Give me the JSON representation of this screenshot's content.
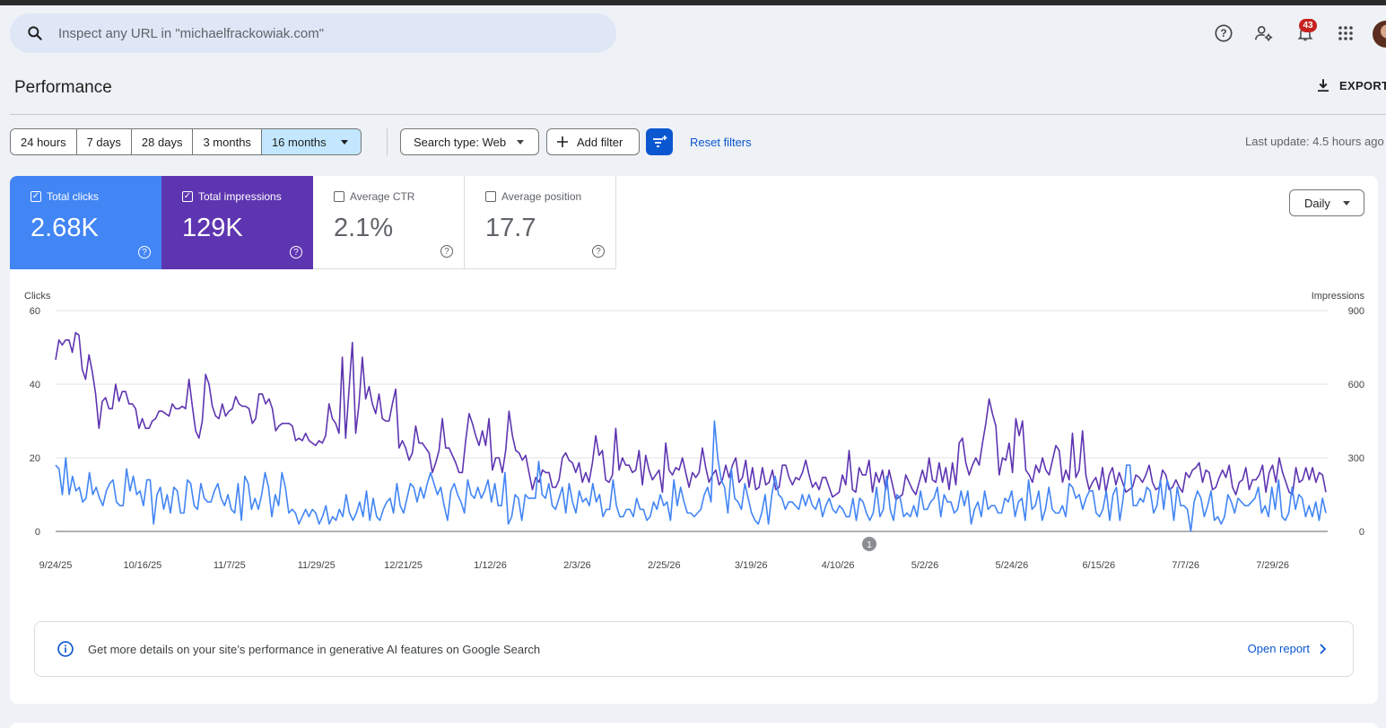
{
  "search": {
    "placeholder": "Inspect any URL in \"michaelfrackowiak.com\""
  },
  "header": {
    "notification_count": "43"
  },
  "page": {
    "title": "Performance",
    "export_label": "EXPORT"
  },
  "date_ranges": [
    "24 hours",
    "7 days",
    "28 days",
    "3 months",
    "16 months"
  ],
  "active_range": "16 months",
  "filters": {
    "search_type": "Search type: Web",
    "add_filter": "Add filter",
    "reset": "Reset filters",
    "last_update": "Last update: 4.5 hours ago"
  },
  "metrics": [
    {
      "label": "Total clicks",
      "value": "2.68K",
      "checked": true
    },
    {
      "label": "Total impressions",
      "value": "129K",
      "checked": true
    },
    {
      "label": "Average CTR",
      "value": "2.1%",
      "checked": false
    },
    {
      "label": "Average position",
      "value": "17.7",
      "checked": false
    }
  ],
  "granularity": "Daily",
  "info_banner": {
    "text": "Get more details on your site’s performance in generative AI features on Google Search",
    "link": "Open report"
  },
  "chart_data": {
    "type": "line",
    "left_axis": {
      "label": "Clicks",
      "ticks": [
        0,
        20,
        40,
        60
      ],
      "range": [
        0,
        60
      ]
    },
    "right_axis": {
      "label": "Impressions",
      "ticks": [
        0,
        300,
        600,
        900
      ],
      "range": [
        0,
        900
      ]
    },
    "x_tick_labels": [
      "9/24/25",
      "10/16/25",
      "11/7/25",
      "11/29/25",
      "12/21/25",
      "1/12/26",
      "2/3/26",
      "2/25/26",
      "3/19/26",
      "4/10/26",
      "5/2/26",
      "5/24/26",
      "6/15/26",
      "7/7/26",
      "7/29/26"
    ],
    "annotation_marker": "1",
    "colors": {
      "clicks": "#4285f4",
      "impressions": "#5e35b1"
    },
    "series": [
      {
        "name": "Clicks",
        "axis": "left",
        "values": [
          18,
          17,
          10,
          20,
          10,
          15,
          11,
          12,
          8,
          9,
          16,
          10,
          12,
          9,
          7,
          11,
          13,
          14,
          8,
          7,
          7,
          17,
          11,
          15,
          10,
          11,
          7,
          14,
          14,
          2,
          10,
          12,
          6,
          10,
          5,
          12,
          11,
          5,
          5,
          14,
          13,
          7,
          6,
          13,
          9,
          8,
          8,
          11,
          13,
          9,
          7,
          10,
          6,
          5,
          13,
          3,
          15,
          13,
          6,
          9,
          6,
          10,
          16,
          12,
          4,
          10,
          7,
          16,
          12,
          5,
          6,
          5,
          2,
          4,
          6,
          4,
          6,
          5,
          2,
          4,
          7,
          2,
          4,
          3,
          6,
          4,
          10,
          5,
          3,
          5,
          8,
          4,
          11,
          3,
          9,
          4,
          3,
          6,
          8,
          9,
          5,
          13,
          7,
          5,
          9,
          13,
          12,
          8,
          12,
          9,
          13,
          16,
          13,
          10,
          12,
          7,
          3,
          11,
          13,
          10,
          8,
          5,
          14,
          10,
          9,
          12,
          9,
          11,
          14,
          8,
          13,
          7,
          7,
          16,
          2,
          4,
          10,
          9,
          3,
          10,
          9,
          9,
          9,
          19,
          10,
          9,
          13,
          7,
          6,
          9,
          12,
          5,
          13,
          8,
          5,
          11,
          8,
          9,
          7,
          13,
          8,
          10,
          4,
          6,
          6,
          14,
          7,
          4,
          4,
          6,
          6,
          4,
          9,
          6,
          6,
          3,
          4,
          8,
          6,
          10,
          7,
          8,
          3,
          14,
          7,
          12,
          8,
          5,
          5,
          4,
          5,
          6,
          10,
          12,
          8,
          30,
          20,
          14,
          12,
          5,
          17,
          9,
          8,
          6,
          13,
          9,
          5,
          3,
          2,
          5,
          10,
          2,
          10,
          15,
          10,
          9,
          6,
          8,
          8,
          7,
          6,
          10,
          7,
          10,
          7,
          6,
          9,
          4,
          7,
          9,
          6,
          5,
          7,
          6,
          4,
          4,
          9,
          3,
          9,
          8,
          5,
          3,
          5,
          12,
          4,
          6,
          15,
          6,
          3,
          10,
          9,
          4,
          5,
          4,
          7,
          4,
          11,
          6,
          6,
          8,
          9,
          12,
          4,
          10,
          8,
          8,
          5,
          6,
          11,
          7,
          11,
          2,
          6,
          8,
          4,
          11,
          6,
          7,
          7,
          5,
          5,
          9,
          8,
          11,
          4,
          8,
          9,
          3,
          14,
          6,
          7,
          11,
          3,
          6,
          12,
          6,
          5,
          5,
          7,
          4,
          13,
          12,
          9,
          10,
          6,
          9,
          11,
          11,
          5,
          4,
          6,
          11,
          3,
          10,
          12,
          3,
          9,
          18,
          18,
          7,
          7,
          9,
          8,
          12,
          11,
          5,
          7,
          14,
          6,
          14,
          11,
          3,
          12,
          7,
          7,
          6,
          0,
          8,
          11,
          9,
          4,
          7,
          11,
          3,
          4,
          2,
          4,
          10,
          8,
          5,
          9,
          8,
          7,
          7,
          8,
          9,
          12,
          5,
          7,
          4,
          12,
          6,
          14,
          4,
          3,
          5,
          12,
          6,
          10,
          9,
          4,
          7,
          4,
          8,
          3,
          9,
          5
        ],
        "note": "approximate daily values read from chart"
      },
      {
        "name": "Impressions",
        "axis": "right",
        "values": [
          700,
          780,
          760,
          780,
          780,
          730,
          810,
          800,
          660,
          620,
          720,
          650,
          560,
          420,
          530,
          545,
          500,
          500,
          600,
          530,
          570,
          570,
          520,
          520,
          500,
          420,
          460,
          420,
          420,
          450,
          460,
          490,
          490,
          480,
          470,
          520,
          500,
          500,
          510,
          500,
          620,
          510,
          410,
          380,
          450,
          640,
          600,
          510,
          470,
          460,
          520,
          470,
          490,
          500,
          550,
          520,
          510,
          510,
          500,
          440,
          460,
          560,
          560,
          520,
          540,
          500,
          410,
          430,
          440,
          440,
          440,
          430,
          370,
          380,
          370,
          400,
          370,
          360,
          350,
          370,
          360,
          390,
          520,
          460,
          440,
          400,
          710,
          380,
          580,
          770,
          400,
          520,
          710,
          540,
          590,
          520,
          480,
          560,
          460,
          450,
          450,
          520,
          580,
          340,
          370,
          340,
          290,
          320,
          430,
          360,
          360,
          340,
          320,
          240,
          280,
          330,
          460,
          340,
          340,
          310,
          280,
          240,
          240,
          370,
          480,
          440,
          390,
          350,
          410,
          350,
          460,
          250,
          300,
          300,
          240,
          330,
          490,
          390,
          330,
          320,
          290,
          310,
          240,
          170,
          220,
          200,
          250,
          240,
          240,
          180,
          180,
          210,
          300,
          320,
          290,
          280,
          240,
          280,
          200,
          240,
          200,
          280,
          390,
          310,
          330,
          210,
          200,
          230,
          420,
          250,
          300,
          270,
          270,
          240,
          250,
          330,
          190,
          310,
          250,
          210,
          230,
          250,
          160,
          360,
          250,
          230,
          260,
          250,
          300,
          240,
          180,
          240,
          220,
          240,
          340,
          260,
          200,
          230,
          250,
          190,
          210,
          270,
          220,
          270,
          300,
          200,
          220,
          290,
          180,
          260,
          170,
          180,
          260,
          190,
          200,
          250,
          170,
          180,
          270,
          270,
          220,
          190,
          220,
          210,
          240,
          290,
          230,
          180,
          200,
          170,
          220,
          220,
          180,
          140,
          150,
          160,
          230,
          190,
          330,
          170,
          160,
          260,
          230,
          230,
          290,
          160,
          240,
          200,
          250,
          170,
          250,
          190,
          130,
          140,
          150,
          230,
          200,
          170,
          150,
          200,
          250,
          200,
          300,
          210,
          200,
          280,
          200,
          260,
          170,
          280,
          190,
          360,
          380,
          280,
          230,
          270,
          300,
          270,
          360,
          440,
          540,
          480,
          430,
          230,
          300,
          290,
          360,
          240,
          460,
          390,
          450,
          250,
          230,
          200,
          270,
          240,
          300,
          250,
          230,
          290,
          350,
          330,
          200,
          250,
          210,
          400,
          220,
          250,
          410,
          230,
          170,
          200,
          220,
          170,
          260,
          160,
          230,
          260,
          190,
          240,
          200,
          160,
          170,
          180,
          230,
          220,
          200,
          230,
          270,
          200,
          170,
          180,
          250,
          230,
          170,
          180,
          210,
          180,
          160,
          240,
          220,
          250,
          260,
          280,
          200,
          250,
          240,
          170,
          180,
          220,
          250,
          220,
          270,
          180,
          150,
          200,
          210,
          260,
          170,
          210,
          210,
          230,
          270,
          160,
          240,
          270,
          200,
          300,
          240,
          200,
          160,
          150,
          260,
          200,
          210,
          260,
          210,
          260,
          200,
          240,
          230,
          160
        ],
        "note": "approximate daily values read from chart"
      }
    ]
  }
}
